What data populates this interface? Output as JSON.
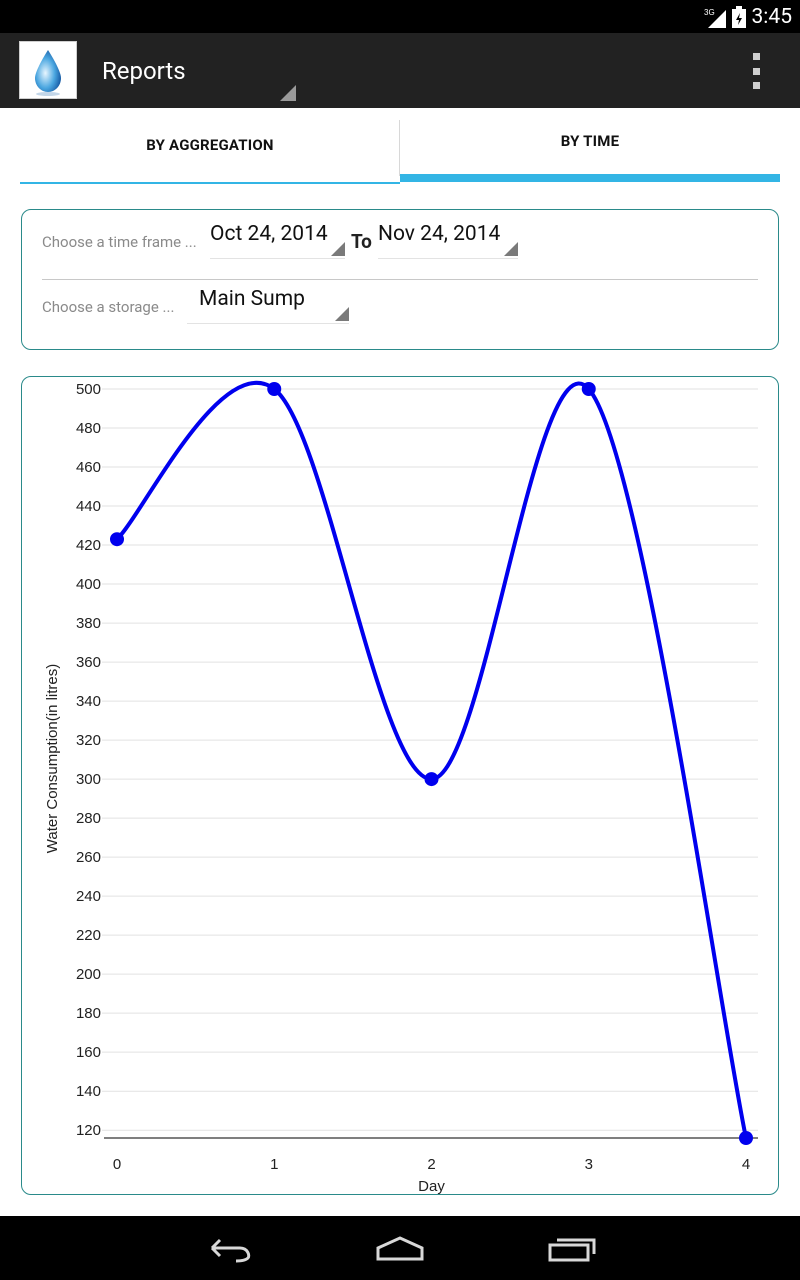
{
  "status_bar": {
    "time": "3:45",
    "network": "3G"
  },
  "action_bar": {
    "title": "Reports"
  },
  "tabs": [
    {
      "label": "BY AGGREGATION",
      "selected": false
    },
    {
      "label": "BY TIME",
      "selected": true
    }
  ],
  "filters": {
    "time_frame_hint": "Choose a time frame ...",
    "from_date": "Oct 24, 2014",
    "to_label": "To",
    "to_date": "Nov 24, 2014",
    "storage_hint": "Choose a storage ...",
    "storage": "Main Sump"
  },
  "colors": {
    "accent": "#33b5e5",
    "line": "#0000ee",
    "card_border": "#2a8a8a"
  },
  "chart_data": {
    "type": "line",
    "title": "",
    "xlabel": "Day",
    "ylabel": "Water Consumption(in litres)",
    "x": [
      0,
      1,
      2,
      3,
      4
    ],
    "values": [
      423,
      500,
      300,
      500,
      116
    ],
    "xticks": [
      "0",
      "1",
      "2",
      "3",
      "4"
    ],
    "yticks": [
      500,
      480,
      460,
      440,
      420,
      400,
      380,
      360,
      340,
      320,
      300,
      280,
      260,
      240,
      220,
      200,
      180,
      160,
      140,
      120
    ],
    "ylim": [
      116,
      500
    ],
    "xlim": [
      0,
      4
    ],
    "grid": true,
    "smooth": true
  }
}
